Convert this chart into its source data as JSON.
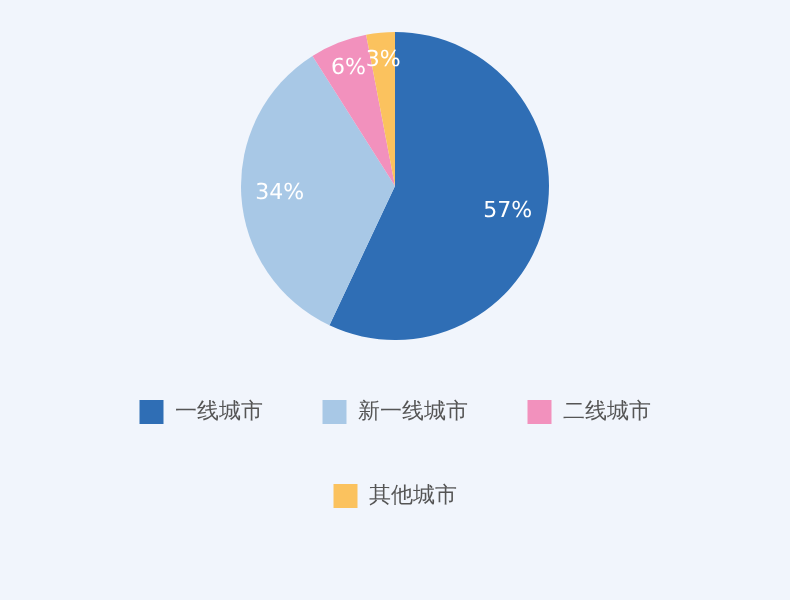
{
  "chart_data": {
    "type": "pie",
    "categories": [
      "一线城市",
      "新一线城市",
      "二线城市",
      "其他城市"
    ],
    "values": [
      57,
      34,
      6,
      3
    ],
    "colors": [
      "#2f6eb5",
      "#a8c8e6",
      "#f291bd",
      "#fbc25e"
    ],
    "value_labels": [
      "57%",
      "34%",
      "6%",
      "3%"
    ],
    "legend": "bottom"
  }
}
